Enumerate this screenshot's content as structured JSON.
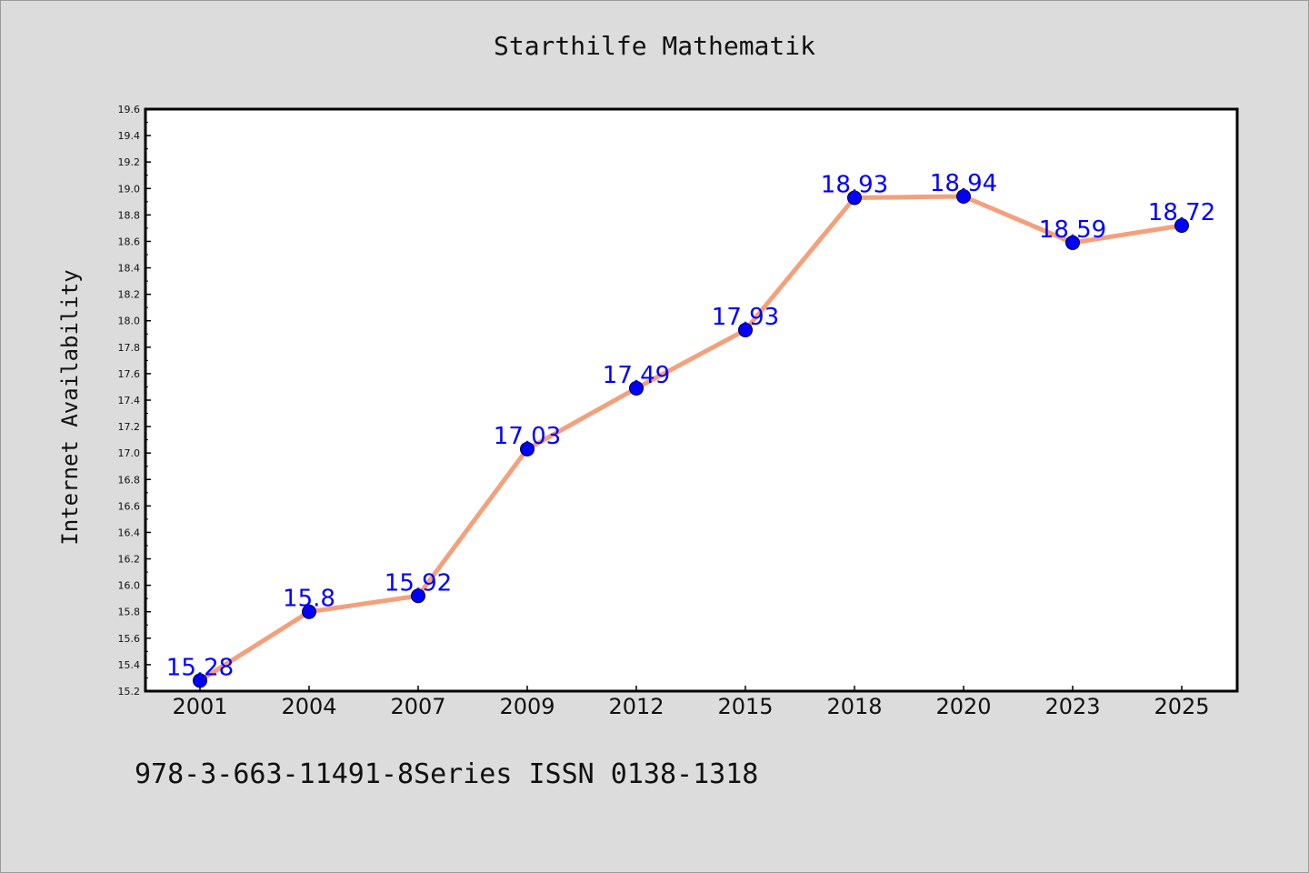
{
  "title": "Starthilfe Mathematik",
  "footer": "978-3-663-11491-8Series ISSN 0138-1318",
  "colors": {
    "background": "#dcdcdc",
    "plot_background": "#ffffff",
    "line": "#f4a07c",
    "marker": "#0000ff",
    "data_label": "#0000ff"
  },
  "chart_data": {
    "type": "line",
    "title": "Starthilfe Mathematik",
    "xlabel": "",
    "ylabel": "Internet Availability",
    "categories": [
      "2001",
      "2004",
      "2007",
      "2009",
      "2012",
      "2015",
      "2018",
      "2020",
      "2023",
      "2025"
    ],
    "values": [
      15.28,
      15.8,
      15.92,
      17.03,
      17.49,
      17.93,
      18.93,
      18.94,
      18.59,
      18.72
    ],
    "data_labels": [
      "15.28",
      "15.8",
      "15.92",
      "17.03",
      "17.49",
      "17.93",
      "18.93",
      "18.94",
      "18.59",
      "18.72"
    ],
    "ylim": [
      15.2,
      19.6
    ],
    "yticks": [
      "15.2",
      "15.4",
      "15.6",
      "15.8",
      "16.0",
      "16.2",
      "16.4",
      "16.6",
      "16.8",
      "17.0",
      "17.2",
      "17.4",
      "17.6",
      "17.8",
      "18.0",
      "18.2",
      "18.4",
      "18.6",
      "18.8",
      "19.0",
      "19.2",
      "19.4",
      "19.6"
    ],
    "grid": false,
    "legend": "none"
  }
}
